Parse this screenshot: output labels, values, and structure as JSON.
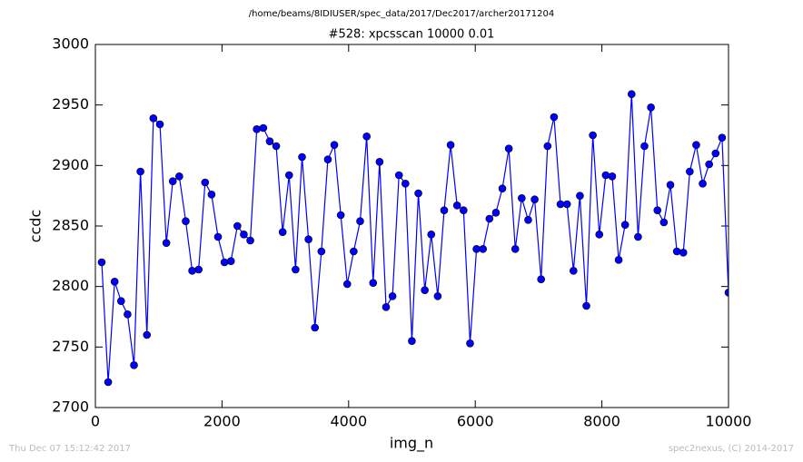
{
  "chart_data": {
    "type": "line",
    "header": "/home/beams/8IDIUSER/spec_data/2017/Dec2017/archer20171204",
    "title": "#528: xpcsscan 10000 0.01",
    "xlabel": "img_n",
    "ylabel": "ccdc",
    "footer_left": "Thu Dec 07 15:12:42 2017",
    "footer_right": "spec2nexus, (C) 2014-2017",
    "x": [
      100,
      202,
      304,
      406,
      508,
      610,
      712,
      814,
      916,
      1019,
      1121,
      1223,
      1325,
      1427,
      1529,
      1631,
      1733,
      1835,
      1937,
      2039,
      2141,
      2243,
      2345,
      2447,
      2549,
      2652,
      2754,
      2856,
      2958,
      3060,
      3162,
      3264,
      3366,
      3468,
      3570,
      3672,
      3774,
      3876,
      3978,
      4080,
      4182,
      4285,
      4387,
      4489,
      4591,
      4693,
      4795,
      4897,
      4999,
      5101,
      5203,
      5305,
      5407,
      5509,
      5611,
      5713,
      5815,
      5918,
      6020,
      6122,
      6224,
      6326,
      6428,
      6530,
      6632,
      6734,
      6836,
      6938,
      7040,
      7142,
      7244,
      7346,
      7449,
      7551,
      7653,
      7755,
      7857,
      7959,
      8061,
      8163,
      8265,
      8367,
      8469,
      8571,
      8673,
      8775,
      8877,
      8979,
      9082,
      9184,
      9286,
      9388,
      9490,
      9592,
      9694,
      9796,
      9898,
      10000
    ],
    "series": [
      {
        "name": "ccdc",
        "color": "#0000ff",
        "values": [
          2820,
          2721,
          2804,
          2788,
          2777,
          2735,
          2895,
          2760,
          2939,
          2934,
          2836,
          2887,
          2891,
          2854,
          2813,
          2814,
          2886,
          2876,
          2841,
          2820,
          2821,
          2850,
          2843,
          2838,
          2930,
          2931,
          2920,
          2916,
          2845,
          2892,
          2814,
          2907,
          2839,
          2766,
          2829,
          2905,
          2917,
          2859,
          2802,
          2829,
          2854,
          2924,
          2803,
          2903,
          2783,
          2792,
          2892,
          2885,
          2755,
          2877,
          2797,
          2843,
          2792,
          2863,
          2917,
          2867,
          2863,
          2753,
          2831,
          2831,
          2856,
          2861,
          2881,
          2914,
          2831,
          2873,
          2855,
          2872,
          2806,
          2916,
          2940,
          2868,
          2868,
          2813,
          2875,
          2784,
          2925,
          2843,
          2892,
          2891,
          2822,
          2851,
          2959,
          2841,
          2916,
          2948,
          2863,
          2853,
          2884,
          2829,
          2828,
          2895,
          2917,
          2885,
          2901,
          2910,
          2923,
          2795
        ]
      }
    ],
    "xlim": [
      0,
      10000
    ],
    "xticks": [
      0,
      2000,
      4000,
      6000,
      8000,
      10000
    ],
    "ylim": [
      2700,
      3000
    ],
    "yticks": [
      2700,
      2750,
      2800,
      2850,
      2900,
      2950,
      3000
    ],
    "grid": false
  }
}
